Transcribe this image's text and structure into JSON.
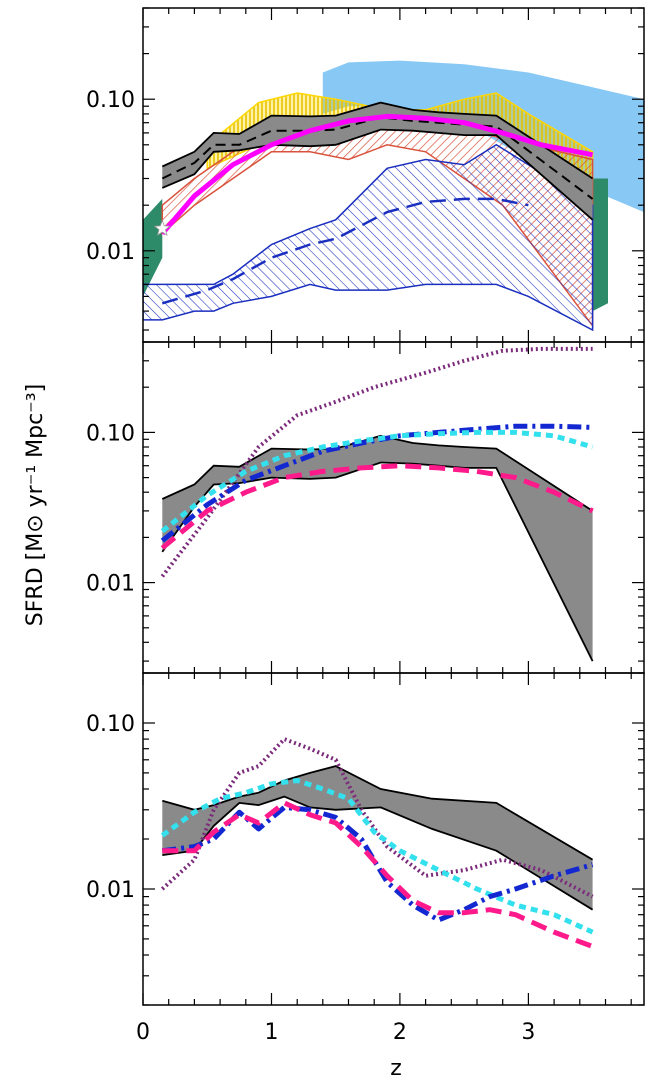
{
  "figure": {
    "ylabel": "SFRD [M⊙ yr⁻¹ Mpc⁻³]",
    "xlabel": "z"
  },
  "chart_data": [
    {
      "type": "area",
      "panel": "top",
      "xlim": [
        0,
        3.9
      ],
      "ylim": [
        0.0025,
        0.4
      ],
      "yscale": "log",
      "y_ticks": [
        {
          "value": 0.01,
          "label": "0.01"
        },
        {
          "value": 0.1,
          "label": "0.10"
        }
      ],
      "x_ticks": [
        0,
        1,
        2,
        3
      ],
      "bands": [
        {
          "color": "#87c8f5",
          "x": [
            1.4,
            1.6,
            2.0,
            2.5,
            3.0,
            3.5,
            3.9
          ],
          "lower": [
            0.08,
            0.09,
            0.09,
            0.07,
            0.04,
            0.025,
            0.018
          ],
          "upper": [
            0.15,
            0.175,
            0.18,
            0.17,
            0.15,
            0.12,
            0.1
          ]
        },
        {
          "color": "#2e8b6a",
          "x": [
            0.0,
            0.15
          ],
          "lower": [
            0.005,
            0.009
          ],
          "upper": [
            0.016,
            0.022
          ]
        },
        {
          "color": "#2e8b6a",
          "x": [
            3.5,
            3.62
          ],
          "lower": [
            0.004,
            0.0045
          ],
          "upper": [
            0.03,
            0.03
          ]
        },
        {
          "color": "#ffd700",
          "hatch": "vertical",
          "x": [
            0.5,
            0.9,
            1.2,
            1.5,
            1.9,
            2.2,
            2.5,
            2.75,
            3.0,
            3.5
          ],
          "lower": [
            0.035,
            0.05,
            0.06,
            0.065,
            0.07,
            0.07,
            0.065,
            0.06,
            0.05,
            0.03
          ],
          "upper": [
            0.05,
            0.095,
            0.11,
            0.1,
            0.085,
            0.085,
            0.1,
            0.11,
            0.08,
            0.045
          ]
        },
        {
          "color": "#d9523c",
          "hatch": "diagonal",
          "x": [
            0.15,
            0.4,
            0.7,
            1.0,
            1.3,
            1.6,
            1.9,
            2.2,
            2.5,
            2.8,
            3.5
          ],
          "lower": [
            0.013,
            0.02,
            0.03,
            0.045,
            0.045,
            0.04,
            0.05,
            0.045,
            0.03,
            0.02,
            0.0032
          ],
          "upper": [
            0.02,
            0.03,
            0.045,
            0.06,
            0.06,
            0.06,
            0.065,
            0.065,
            0.065,
            0.055,
            0.04
          ]
        },
        {
          "color": "#1a2fbf",
          "hatch": "diagonal",
          "x": [
            0.0,
            0.15,
            0.4,
            0.55,
            0.7,
            1.0,
            1.3,
            1.5,
            1.9,
            2.2,
            2.5,
            2.75,
            3.0,
            3.5
          ],
          "lower": [
            0.0035,
            0.0035,
            0.004,
            0.004,
            0.0045,
            0.005,
            0.006,
            0.0055,
            0.0055,
            0.006,
            0.006,
            0.006,
            0.005,
            0.003
          ],
          "upper": [
            0.006,
            0.006,
            0.006,
            0.006,
            0.007,
            0.011,
            0.014,
            0.016,
            0.035,
            0.04,
            0.037,
            0.05,
            0.037,
            0.02
          ]
        }
      ],
      "grey_band": {
        "x": [
          0.15,
          0.4,
          0.55,
          0.75,
          1.0,
          1.3,
          1.5,
          1.85,
          2.1,
          2.3,
          2.5,
          2.75,
          3.5
        ],
        "lower": [
          0.026,
          0.032,
          0.045,
          0.046,
          0.05,
          0.049,
          0.05,
          0.063,
          0.062,
          0.06,
          0.058,
          0.058,
          0.016
        ],
        "upper": [
          0.036,
          0.045,
          0.06,
          0.059,
          0.078,
          0.077,
          0.078,
          0.095,
          0.085,
          0.082,
          0.08,
          0.078,
          0.03
        ]
      },
      "series": [
        {
          "style": "dashed-black",
          "color": "#000000",
          "x": [
            0.15,
            0.4,
            0.55,
            0.75,
            1.0,
            1.3,
            1.5,
            1.85,
            2.1,
            2.3,
            2.5,
            2.75,
            3.5
          ],
          "values": [
            0.03,
            0.038,
            0.05,
            0.05,
            0.062,
            0.062,
            0.063,
            0.076,
            0.072,
            0.07,
            0.068,
            0.066,
            0.022
          ]
        },
        {
          "style": "dashed-blue",
          "color": "#1a2fbf",
          "x": [
            0.15,
            0.5,
            0.7,
            1.0,
            1.3,
            1.5,
            1.9,
            2.2,
            2.5,
            2.75,
            3.0
          ],
          "values": [
            0.0045,
            0.0055,
            0.0065,
            0.009,
            0.011,
            0.012,
            0.018,
            0.021,
            0.022,
            0.022,
            0.02
          ]
        },
        {
          "style": "solid-magenta",
          "color": "#ff00ff",
          "x": [
            0.15,
            0.4,
            0.7,
            1.0,
            1.3,
            1.6,
            1.9,
            2.2,
            2.5,
            2.8,
            3.1,
            3.5
          ],
          "values": [
            0.013,
            0.023,
            0.037,
            0.05,
            0.062,
            0.072,
            0.077,
            0.075,
            0.07,
            0.06,
            0.05,
            0.043
          ]
        }
      ],
      "markers": [
        {
          "shape": "star",
          "x": 0.15,
          "y": 0.014,
          "color": "#ffffff"
        }
      ]
    },
    {
      "type": "line",
      "panel": "middle",
      "xlim": [
        0,
        3.9
      ],
      "ylim": [
        0.0025,
        0.4
      ],
      "yscale": "log",
      "y_ticks": [
        {
          "value": 0.01,
          "label": "0.01"
        },
        {
          "value": 0.1,
          "label": "0.10"
        }
      ],
      "x_ticks": [
        0,
        1,
        2,
        3
      ],
      "grey_band": {
        "x": [
          0.15,
          0.4,
          0.55,
          0.75,
          1.0,
          1.3,
          1.5,
          1.85,
          2.1,
          2.3,
          2.5,
          2.75,
          3.5
        ],
        "lower": [
          0.016,
          0.032,
          0.045,
          0.046,
          0.05,
          0.049,
          0.05,
          0.063,
          0.062,
          0.06,
          0.058,
          0.058,
          0.003
        ],
        "upper": [
          0.036,
          0.045,
          0.06,
          0.059,
          0.078,
          0.077,
          0.078,
          0.095,
          0.085,
          0.082,
          0.08,
          0.078,
          0.03
        ]
      },
      "series": [
        {
          "style": "dotted-purple",
          "color": "#7b2b7b",
          "x": [
            0.15,
            0.5,
            0.9,
            1.2,
            1.5,
            1.8,
            2.2,
            2.5,
            2.8,
            3.1,
            3.5
          ],
          "values": [
            0.011,
            0.027,
            0.08,
            0.13,
            0.16,
            0.2,
            0.25,
            0.3,
            0.35,
            0.36,
            0.36
          ]
        },
        {
          "style": "dashdot-blue",
          "color": "#1428d2",
          "x": [
            0.15,
            0.5,
            0.8,
            1.1,
            1.4,
            1.7,
            2.0,
            2.3,
            2.6,
            2.9,
            3.2,
            3.5
          ],
          "values": [
            0.019,
            0.033,
            0.048,
            0.06,
            0.075,
            0.085,
            0.095,
            0.1,
            0.105,
            0.11,
            0.11,
            0.108
          ]
        },
        {
          "style": "dotted-cyan",
          "color": "#33e0ee",
          "x": [
            0.15,
            0.5,
            0.8,
            1.1,
            1.4,
            1.7,
            2.0,
            2.3,
            2.6,
            2.9,
            3.2,
            3.5
          ],
          "values": [
            0.022,
            0.038,
            0.055,
            0.07,
            0.08,
            0.088,
            0.095,
            0.098,
            0.1,
            0.1,
            0.095,
            0.08
          ]
        },
        {
          "style": "dashed-pink",
          "color": "#ff1a8c",
          "x": [
            0.15,
            0.5,
            0.8,
            1.1,
            1.4,
            1.7,
            2.0,
            2.3,
            2.6,
            2.9,
            3.2,
            3.5
          ],
          "values": [
            0.017,
            0.03,
            0.04,
            0.05,
            0.055,
            0.058,
            0.06,
            0.058,
            0.055,
            0.05,
            0.04,
            0.03
          ]
        }
      ]
    },
    {
      "type": "line",
      "panel": "bottom",
      "xlim": [
        0,
        3.9
      ],
      "ylim": [
        0.002,
        0.2
      ],
      "yscale": "log",
      "y_ticks": [
        {
          "value": 0.01,
          "label": "0.01"
        },
        {
          "value": 0.1,
          "label": "0.10"
        }
      ],
      "x_ticks": [
        {
          "value": 0,
          "label": "0"
        },
        {
          "value": 1,
          "label": "1"
        },
        {
          "value": 2,
          "label": "2"
        },
        {
          "value": 3,
          "label": "3"
        }
      ],
      "grey_band": {
        "x": [
          0.15,
          0.4,
          0.55,
          0.75,
          0.9,
          1.1,
          1.3,
          1.5,
          1.85,
          2.25,
          2.75,
          3.5
        ],
        "lower": [
          0.016,
          0.017,
          0.024,
          0.033,
          0.032,
          0.036,
          0.031,
          0.03,
          0.031,
          0.023,
          0.017,
          0.0075
        ],
        "upper": [
          0.034,
          0.03,
          0.032,
          0.036,
          0.038,
          0.045,
          0.05,
          0.055,
          0.04,
          0.035,
          0.033,
          0.015
        ]
      },
      "series": [
        {
          "style": "dotted-purple",
          "color": "#7b2b7b",
          "x": [
            0.15,
            0.4,
            0.55,
            0.75,
            0.9,
            1.1,
            1.3,
            1.5,
            1.7,
            1.9,
            2.2,
            2.5,
            2.8,
            3.1,
            3.5
          ],
          "values": [
            0.01,
            0.015,
            0.03,
            0.05,
            0.055,
            0.08,
            0.07,
            0.06,
            0.03,
            0.018,
            0.012,
            0.013,
            0.015,
            0.013,
            0.009
          ]
        },
        {
          "style": "dotted-cyan",
          "color": "#33e0ee",
          "x": [
            0.15,
            0.4,
            0.6,
            0.8,
            1.0,
            1.2,
            1.4,
            1.6,
            1.8,
            2.0,
            2.3,
            2.6,
            2.9,
            3.2,
            3.5
          ],
          "values": [
            0.021,
            0.029,
            0.035,
            0.038,
            0.043,
            0.045,
            0.04,
            0.035,
            0.022,
            0.017,
            0.013,
            0.01,
            0.008,
            0.007,
            0.0055
          ]
        },
        {
          "style": "dashdot-blue",
          "color": "#1428d2",
          "x": [
            0.15,
            0.4,
            0.55,
            0.75,
            0.9,
            1.1,
            1.3,
            1.5,
            1.7,
            1.9,
            2.1,
            2.3,
            2.5,
            2.7,
            2.9,
            3.2,
            3.5
          ],
          "values": [
            0.017,
            0.018,
            0.02,
            0.029,
            0.023,
            0.031,
            0.03,
            0.027,
            0.02,
            0.011,
            0.008,
            0.0065,
            0.0075,
            0.009,
            0.01,
            0.012,
            0.014
          ]
        },
        {
          "style": "dashed-pink",
          "color": "#ff1a8c",
          "x": [
            0.15,
            0.4,
            0.55,
            0.75,
            0.9,
            1.1,
            1.3,
            1.5,
            1.7,
            1.9,
            2.1,
            2.3,
            2.5,
            2.7,
            2.9,
            3.2,
            3.5
          ],
          "values": [
            0.017,
            0.017,
            0.022,
            0.028,
            0.025,
            0.033,
            0.028,
            0.025,
            0.018,
            0.012,
            0.0085,
            0.0072,
            0.0072,
            0.0075,
            0.007,
            0.0055,
            0.0045
          ]
        }
      ]
    }
  ]
}
